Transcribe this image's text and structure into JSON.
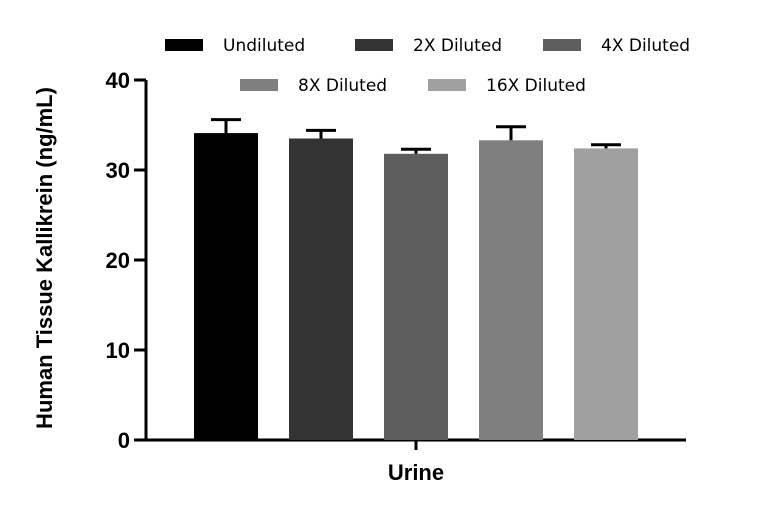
{
  "chart_data": {
    "type": "bar",
    "title": "",
    "xlabel": "",
    "ylabel": "Human Tissue Kallikrein (ng/mL)",
    "ylim": [
      0,
      40
    ],
    "yticks": [
      0,
      10,
      20,
      30,
      40
    ],
    "group_label": "Urine",
    "legend_position": "top",
    "grid": false,
    "series": [
      {
        "name": "Undiluted",
        "value": 34.1,
        "error": 1.5,
        "color": "#000000"
      },
      {
        "name": "2X Diluted",
        "value": 33.5,
        "error": 0.9,
        "color": "#333333"
      },
      {
        "name": "4X Diluted",
        "value": 31.8,
        "error": 0.5,
        "color": "#5e5e5e"
      },
      {
        "name": "8X Diluted",
        "value": 33.3,
        "error": 1.5,
        "color": "#7f7f7f"
      },
      {
        "name": "16X Diluted",
        "value": 32.4,
        "error": 0.4,
        "color": "#a0a0a0"
      }
    ]
  }
}
